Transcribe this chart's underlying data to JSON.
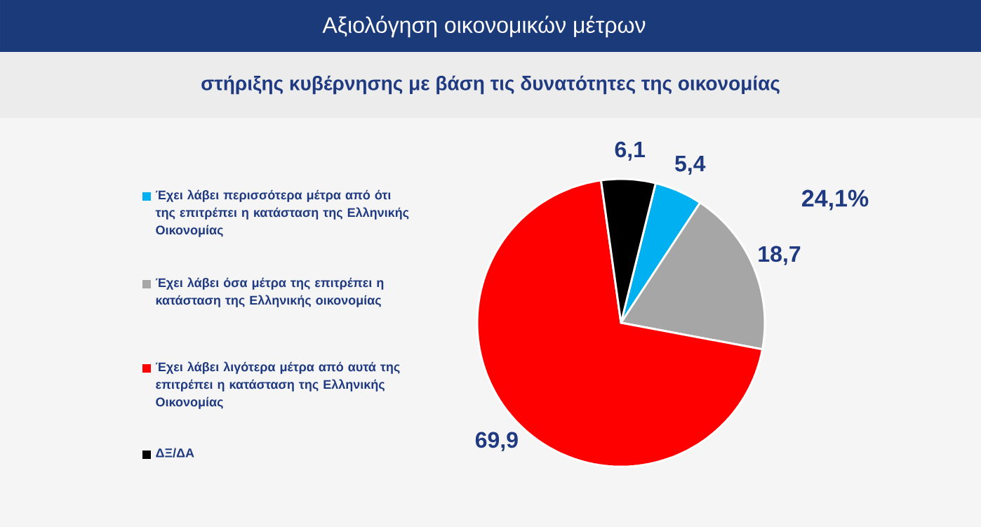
{
  "chart_data": {
    "type": "pie",
    "title": "Αξιολόγηση οικονομικών μέτρων",
    "subtitle": "στήριξης κυβέρνησης με βάση τις δυνατότητες της οικονομίας",
    "categories": [
      "Έχει λάβει περισσότερα μέτρα από ότι της επιτρέπει η κατάσταση της Ελληνικής Οικονομίας",
      "Έχει λάβει όσα μέτρα της επιτρέπει η κατάσταση της Ελληνικής οικονομίας",
      "Έχει λάβει λιγότερα μέτρα από αυτά της επιτρέπει η κατάσταση της Ελληνικής Οικονομίας",
      "ΔΞ/ΔΑ"
    ],
    "values": [
      5.4,
      18.7,
      69.9,
      6.1
    ],
    "colors": [
      "#00b0f0",
      "#a6a6a6",
      "#ff0000",
      "#000000"
    ],
    "value_labels": [
      "5,4",
      "18,7",
      "69,9",
      "6,1"
    ],
    "annotations": [
      "24,1%"
    ],
    "legend": "left"
  }
}
